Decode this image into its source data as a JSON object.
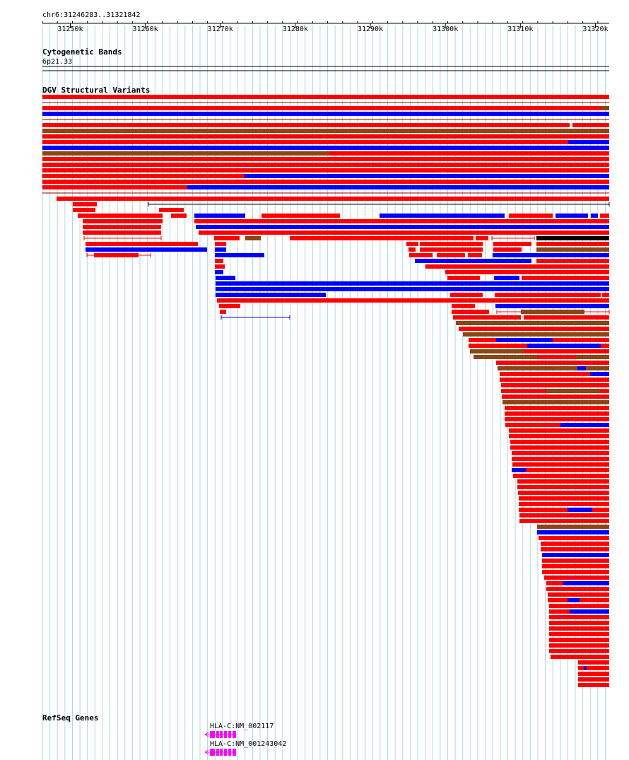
{
  "region": "chr6:31246283..31321842",
  "ruler": {
    "start": 31246283,
    "end": 31321842,
    "ticks": [
      {
        "pos": 31250000,
        "label": "31250k"
      },
      {
        "pos": 31260000,
        "label": "31260k"
      },
      {
        "pos": 31270000,
        "label": "31270k"
      },
      {
        "pos": 31280000,
        "label": "31280k"
      },
      {
        "pos": 31290000,
        "label": "31290k"
      },
      {
        "pos": 31300000,
        "label": "31300k"
      },
      {
        "pos": 31310000,
        "label": "31310k"
      },
      {
        "pos": 31320000,
        "label": "31320k"
      }
    ]
  },
  "tracks": {
    "cytoband": {
      "title": "Cytogenetic Bands",
      "band": "6p21.33"
    },
    "dgv": {
      "title": "DGV Structural Variants"
    },
    "refseq": {
      "title": "RefSeq Genes",
      "genes": [
        {
          "name": "HLA-C",
          "accession": "NM_002117",
          "label": "HLA-C:NM_002117",
          "strand": "-"
        },
        {
          "name": "HLA-C",
          "accession": "NM_001243042",
          "label": "HLA-C:NM_001243042",
          "strand": "-"
        }
      ]
    }
  },
  "colors": {
    "gridline": "#add8e6",
    "loss": "#ff0000",
    "gain": "#0000ff",
    "gain_loss": "#8b4513",
    "inversion": "#000000",
    "gene": "#ff00ff"
  }
}
